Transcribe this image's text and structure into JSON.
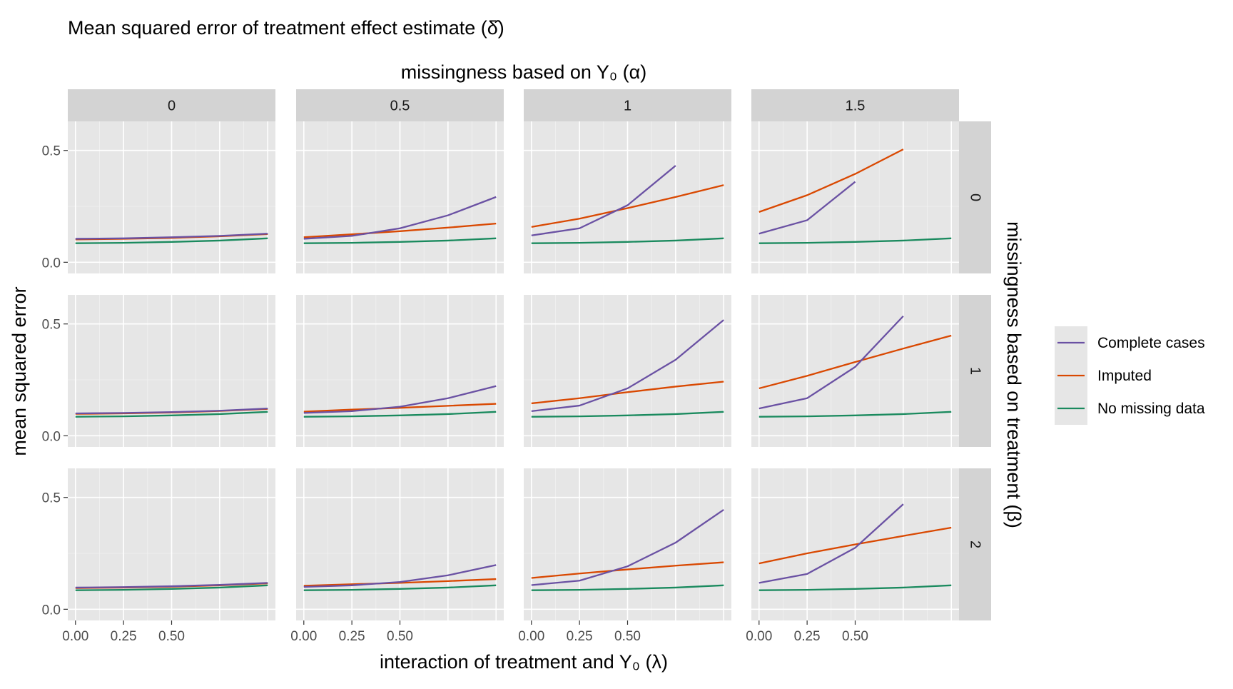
{
  "chart_data": {
    "type": "line",
    "title": "Mean squared error of treatment effect estimate (δ̂)",
    "top_strip_label": "missingness based on Y₀ (α)",
    "right_strip_label": "missingness based on treatment (β)",
    "xlabel": "interaction of treatment and Y₀ (λ)",
    "ylabel": "mean squared error",
    "col_values": [
      "0",
      "0.5",
      "1",
      "1.5"
    ],
    "row_values": [
      "0",
      "1",
      "2"
    ],
    "x_ticks": [
      "0.00",
      "0.25",
      "0.50"
    ],
    "x_tick_values": [
      0,
      0.25,
      0.5
    ],
    "y_ticks": [
      "0.0",
      "0.5"
    ],
    "y_tick_values": [
      0,
      0.5
    ],
    "xlim": [
      -0.04,
      1.04
    ],
    "ylim": [
      -0.05,
      0.63
    ],
    "grid": true,
    "legend_position": "right",
    "legend": [
      {
        "name": "Complete cases",
        "color": "#6a51a3"
      },
      {
        "name": "Imputed",
        "color": "#d94801"
      },
      {
        "name": "No missing data",
        "color": "#1a8a5e"
      }
    ],
    "x": [
      0,
      0.25,
      0.5,
      0.75,
      1.0
    ],
    "panels": [
      {
        "row": 0,
        "col": 0,
        "complete": [
          0.105,
          0.107,
          0.112,
          0.118,
          0.128
        ],
        "imputed": [
          0.102,
          0.105,
          0.109,
          0.116,
          0.126
        ],
        "nomissing": [
          0.085,
          0.087,
          0.091,
          0.097,
          0.107
        ]
      },
      {
        "row": 0,
        "col": 1,
        "complete": [
          0.105,
          0.118,
          0.152,
          0.21,
          0.292
        ],
        "imputed": [
          0.112,
          0.125,
          0.139,
          0.155,
          0.173
        ],
        "nomissing": [
          0.085,
          0.087,
          0.091,
          0.097,
          0.107
        ]
      },
      {
        "row": 0,
        "col": 2,
        "complete": [
          0.12,
          0.152,
          0.255,
          0.432,
          null
        ],
        "imputed": [
          0.158,
          0.195,
          0.242,
          0.292,
          0.345
        ],
        "nomissing": [
          0.085,
          0.087,
          0.091,
          0.097,
          0.107
        ]
      },
      {
        "row": 0,
        "col": 3,
        "complete": [
          0.128,
          0.188,
          0.36,
          null,
          null
        ],
        "imputed": [
          0.225,
          0.3,
          0.395,
          0.505,
          null
        ],
        "nomissing": [
          0.085,
          0.087,
          0.091,
          0.097,
          0.107
        ]
      },
      {
        "row": 1,
        "col": 0,
        "complete": [
          0.1,
          0.102,
          0.106,
          0.112,
          0.122
        ],
        "imputed": [
          0.098,
          0.1,
          0.104,
          0.111,
          0.12
        ],
        "nomissing": [
          0.085,
          0.087,
          0.091,
          0.097,
          0.107
        ]
      },
      {
        "row": 1,
        "col": 1,
        "complete": [
          0.102,
          0.11,
          0.13,
          0.168,
          0.222
        ],
        "imputed": [
          0.108,
          0.117,
          0.125,
          0.134,
          0.143
        ],
        "nomissing": [
          0.085,
          0.087,
          0.091,
          0.097,
          0.107
        ]
      },
      {
        "row": 1,
        "col": 2,
        "complete": [
          0.11,
          0.135,
          0.212,
          0.34,
          0.518
        ],
        "imputed": [
          0.145,
          0.168,
          0.195,
          0.22,
          0.242
        ],
        "nomissing": [
          0.085,
          0.087,
          0.091,
          0.097,
          0.107
        ]
      },
      {
        "row": 1,
        "col": 3,
        "complete": [
          0.122,
          0.168,
          0.308,
          0.535,
          null
        ],
        "imputed": [
          0.212,
          0.268,
          0.33,
          0.39,
          0.448
        ],
        "nomissing": [
          0.085,
          0.087,
          0.091,
          0.097,
          0.107
        ]
      },
      {
        "row": 2,
        "col": 0,
        "complete": [
          0.097,
          0.099,
          0.103,
          0.109,
          0.118
        ],
        "imputed": [
          0.095,
          0.097,
          0.101,
          0.107,
          0.116
        ],
        "nomissing": [
          0.085,
          0.087,
          0.091,
          0.097,
          0.107
        ]
      },
      {
        "row": 2,
        "col": 1,
        "complete": [
          0.1,
          0.107,
          0.122,
          0.152,
          0.198
        ],
        "imputed": [
          0.105,
          0.112,
          0.118,
          0.126,
          0.135
        ],
        "nomissing": [
          0.085,
          0.087,
          0.091,
          0.097,
          0.107
        ]
      },
      {
        "row": 2,
        "col": 2,
        "complete": [
          0.108,
          0.128,
          0.192,
          0.298,
          0.445
        ],
        "imputed": [
          0.14,
          0.16,
          0.178,
          0.195,
          0.21
        ],
        "nomissing": [
          0.085,
          0.087,
          0.091,
          0.097,
          0.107
        ]
      },
      {
        "row": 2,
        "col": 3,
        "complete": [
          0.118,
          0.158,
          0.275,
          0.47,
          null
        ],
        "imputed": [
          0.205,
          0.25,
          0.29,
          0.328,
          0.365
        ],
        "nomissing": [
          0.085,
          0.087,
          0.091,
          0.097,
          0.107
        ]
      }
    ]
  }
}
